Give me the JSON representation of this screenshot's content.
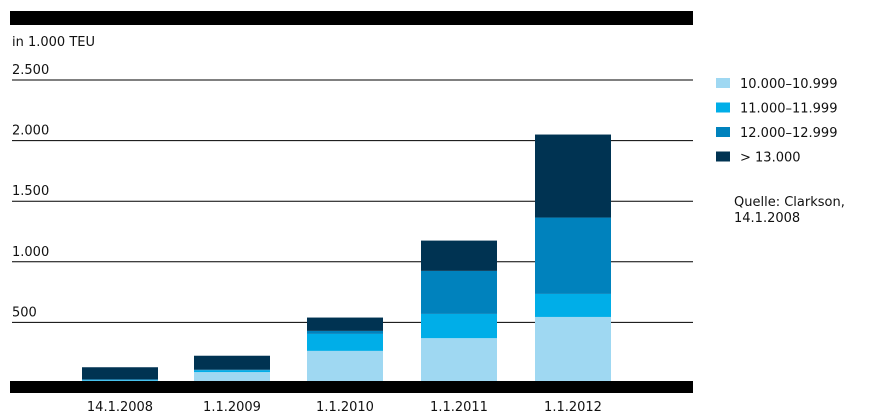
{
  "chart_data": {
    "type": "stacked_bar",
    "y_label": "in 1.000 TEU",
    "source": "Quelle: Clarkson, 14.1.2008",
    "categories": [
      "14.1.2008",
      "1.1.2009",
      "1.1.2010",
      "1.1.2011",
      "1.1.2012"
    ],
    "series": [
      {
        "name": "10.000–10.999",
        "color": "#9fd8f2",
        "values": [
          20,
          90,
          265,
          370,
          545
        ]
      },
      {
        "name": "11.000–11.999",
        "color": "#00aee8",
        "values": [
          5,
          15,
          140,
          200,
          190
        ]
      },
      {
        "name": "12.000–12.999",
        "color": "#0082bd",
        "values": [
          5,
          5,
          25,
          355,
          630
        ]
      },
      {
        "name": "> 13.000",
        "color": "#003352",
        "values": [
          100,
          115,
          110,
          250,
          685
        ]
      }
    ],
    "ylim": [
      0,
      2500
    ],
    "yticks": [
      {
        "value": 500,
        "label": "500"
      },
      {
        "value": 1000,
        "label": "1.000"
      },
      {
        "value": 1500,
        "label": "1.500"
      },
      {
        "value": 2000,
        "label": "2.000"
      },
      {
        "value": 2500,
        "label": "2.500"
      }
    ],
    "grid": true
  }
}
